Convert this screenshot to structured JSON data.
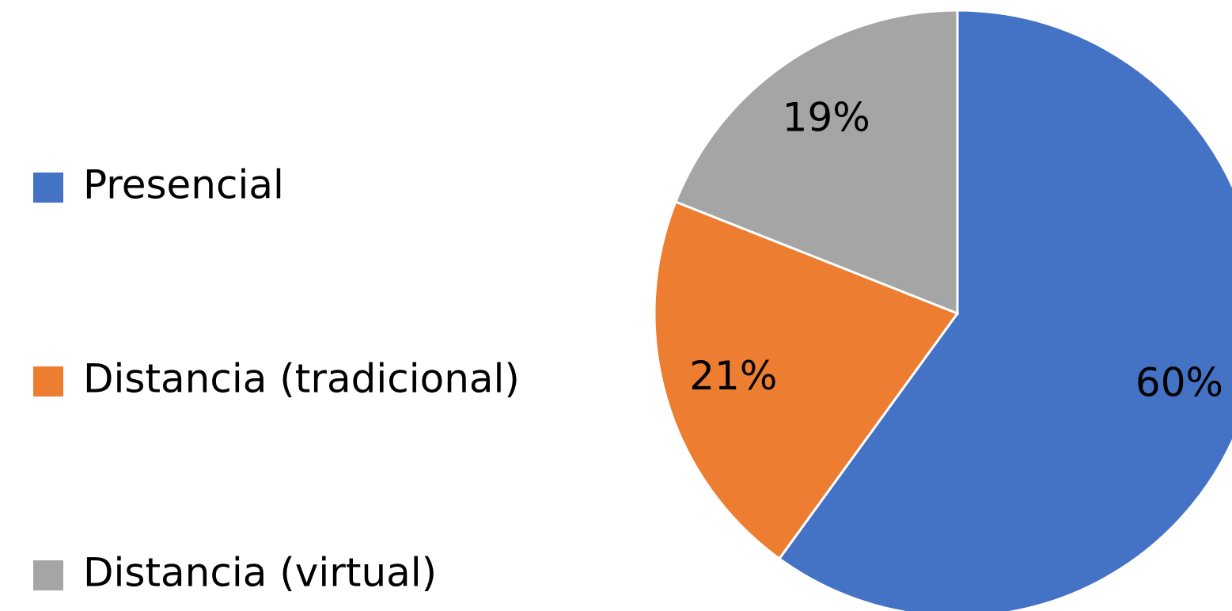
{
  "chart_data": {
    "type": "pie",
    "categories": [
      "Presencial",
      "Distancia (tradicional)",
      "Distancia (virtual)"
    ],
    "values": [
      60,
      21,
      19
    ],
    "value_labels": [
      "60%",
      "21%",
      "19%"
    ],
    "colors": [
      "#4472c4",
      "#ed7d31",
      "#a5a5a5"
    ],
    "legend": "left"
  }
}
